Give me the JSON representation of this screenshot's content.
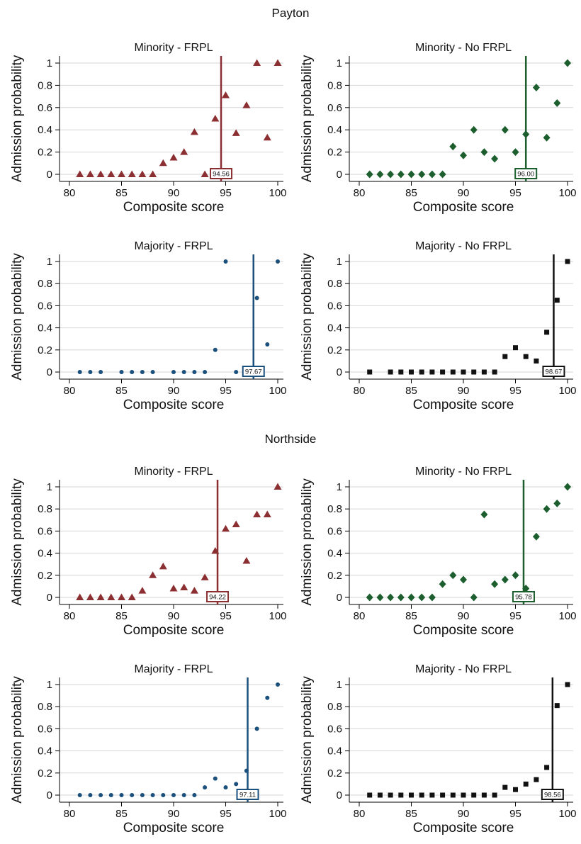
{
  "colors": {
    "red": "#8b2f32",
    "green": "#1d5e2e",
    "blue": "#1b4f7c",
    "black": "#111111"
  },
  "chart_data": [
    {
      "type": "scatter",
      "school": "Payton",
      "title": "Minority - FRPL",
      "xlabel": "Composite score",
      "ylabel": "Admission probability",
      "xlim": [
        80,
        100
      ],
      "ylim": [
        0,
        1
      ],
      "xticks": [
        80,
        85,
        90,
        95,
        100
      ],
      "yticks": [
        0,
        0.2,
        0.4,
        0.6,
        0.8,
        1
      ],
      "marker": "triangle",
      "color": "#8b2f32",
      "cutoff": 94.56,
      "cutoff_label": "94.56",
      "x": [
        81,
        82,
        83,
        84,
        85,
        86,
        87,
        88,
        89,
        90,
        91,
        92,
        93,
        94,
        95,
        96,
        97,
        98,
        99,
        100
      ],
      "y": [
        0,
        0,
        0,
        0,
        0,
        0,
        0,
        0,
        0.1,
        0.15,
        0.2,
        0.38,
        0,
        0.5,
        0.71,
        0.37,
        0.62,
        1,
        0.33,
        1
      ]
    },
    {
      "type": "scatter",
      "school": "Payton",
      "title": "Minority - No FRPL",
      "xlabel": "Composite score",
      "ylabel": "Admission probability",
      "xlim": [
        80,
        100
      ],
      "ylim": [
        0,
        1
      ],
      "xticks": [
        80,
        85,
        90,
        95,
        100
      ],
      "yticks": [
        0,
        0.2,
        0.4,
        0.6,
        0.8,
        1
      ],
      "marker": "diamond",
      "color": "#1d5e2e",
      "cutoff": 96.0,
      "cutoff_label": "96.00",
      "x": [
        81,
        82,
        83,
        84,
        85,
        86,
        87,
        88,
        89,
        90,
        91,
        92,
        93,
        94,
        95,
        96,
        97,
        98,
        99,
        100
      ],
      "y": [
        0,
        0,
        0,
        0,
        0,
        0,
        0,
        0,
        0.25,
        0.17,
        0.4,
        0.2,
        0.14,
        0.4,
        0.2,
        0.36,
        0.78,
        0.33,
        0.64,
        1
      ]
    },
    {
      "type": "scatter",
      "school": "Payton",
      "title": "Majority - FRPL",
      "xlabel": "Composite score",
      "ylabel": "Admission probability",
      "xlim": [
        80,
        100
      ],
      "ylim": [
        0,
        1
      ],
      "xticks": [
        80,
        85,
        90,
        95,
        100
      ],
      "yticks": [
        0,
        0.2,
        0.4,
        0.6,
        0.8,
        1
      ],
      "marker": "circle",
      "color": "#1b4f7c",
      "cutoff": 97.67,
      "cutoff_label": "97.67",
      "x": [
        81,
        82,
        83,
        85,
        86,
        87,
        88,
        90,
        91,
        92,
        93,
        94,
        95,
        96,
        97,
        98,
        99,
        100
      ],
      "y": [
        0,
        0,
        0,
        0,
        0,
        0,
        0,
        0,
        0,
        0,
        0,
        0.2,
        1,
        0,
        0,
        0.67,
        0.25,
        1
      ]
    },
    {
      "type": "scatter",
      "school": "Payton",
      "title": "Majority - No FRPL",
      "xlabel": "Composite score",
      "ylabel": "Admission probability",
      "xlim": [
        80,
        100
      ],
      "ylim": [
        0,
        1
      ],
      "xticks": [
        80,
        85,
        90,
        95,
        100
      ],
      "yticks": [
        0,
        0.2,
        0.4,
        0.6,
        0.8,
        1
      ],
      "marker": "square",
      "color": "#111111",
      "cutoff": 98.67,
      "cutoff_label": "98.67",
      "x": [
        81,
        83,
        84,
        85,
        86,
        87,
        88,
        89,
        90,
        91,
        92,
        93,
        94,
        95,
        96,
        97,
        98,
        99,
        100
      ],
      "y": [
        0,
        0,
        0,
        0,
        0,
        0,
        0,
        0,
        0,
        0,
        0,
        0,
        0.14,
        0.22,
        0.14,
        0.1,
        0.36,
        0.65,
        1
      ]
    },
    {
      "type": "scatter",
      "school": "Northside",
      "title": "Minority - FRPL",
      "xlabel": "Composite score",
      "ylabel": "Admission probability",
      "xlim": [
        80,
        100
      ],
      "ylim": [
        0,
        1
      ],
      "xticks": [
        80,
        85,
        90,
        95,
        100
      ],
      "yticks": [
        0,
        0.2,
        0.4,
        0.6,
        0.8,
        1
      ],
      "marker": "triangle",
      "color": "#8b2f32",
      "cutoff": 94.22,
      "cutoff_label": "94.22",
      "x": [
        81,
        82,
        83,
        84,
        85,
        86,
        87,
        88,
        89,
        90,
        91,
        92,
        93,
        94,
        95,
        96,
        97,
        98,
        99,
        100
      ],
      "y": [
        0,
        0,
        0,
        0,
        0,
        0,
        0.06,
        0.2,
        0.28,
        0.08,
        0.09,
        0.06,
        0.18,
        0.42,
        0.62,
        0.66,
        0.33,
        0.75,
        0.75,
        1
      ]
    },
    {
      "type": "scatter",
      "school": "Northside",
      "title": "Minority - No FRPL",
      "xlabel": "Composite score",
      "ylabel": "Admission probability",
      "xlim": [
        80,
        100
      ],
      "ylim": [
        0,
        1
      ],
      "xticks": [
        80,
        85,
        90,
        95,
        100
      ],
      "yticks": [
        0,
        0.2,
        0.4,
        0.6,
        0.8,
        1
      ],
      "marker": "diamond",
      "color": "#1d5e2e",
      "cutoff": 95.78,
      "cutoff_label": "95.78",
      "x": [
        81,
        82,
        83,
        84,
        85,
        86,
        87,
        88,
        89,
        90,
        91,
        92,
        93,
        94,
        95,
        96,
        97,
        98,
        99,
        100
      ],
      "y": [
        0,
        0,
        0,
        0,
        0,
        0,
        0,
        0.12,
        0.2,
        0.16,
        0,
        0.75,
        0.12,
        0.16,
        0.2,
        0.08,
        0.55,
        0.8,
        0.85,
        1
      ]
    },
    {
      "type": "scatter",
      "school": "Northside",
      "title": "Majority - FRPL",
      "xlabel": "Composite score",
      "ylabel": "Admission probability",
      "xlim": [
        80,
        100
      ],
      "ylim": [
        0,
        1
      ],
      "xticks": [
        80,
        85,
        90,
        95,
        100
      ],
      "yticks": [
        0,
        0.2,
        0.4,
        0.6,
        0.8,
        1
      ],
      "marker": "circle",
      "color": "#1b4f7c",
      "cutoff": 97.11,
      "cutoff_label": "97.11",
      "x": [
        81,
        82,
        83,
        84,
        85,
        86,
        87,
        88,
        89,
        90,
        91,
        92,
        93,
        94,
        95,
        96,
        97,
        98,
        99,
        100
      ],
      "y": [
        0,
        0,
        0,
        0,
        0,
        0,
        0,
        0,
        0,
        0,
        0,
        0,
        0.07,
        0.15,
        0.07,
        0.1,
        0.22,
        0.6,
        0.88,
        1
      ]
    },
    {
      "type": "scatter",
      "school": "Northside",
      "title": "Majority - No FRPL",
      "xlabel": "Composite score",
      "ylabel": "Admission probability",
      "xlim": [
        80,
        100
      ],
      "ylim": [
        0,
        1
      ],
      "xticks": [
        80,
        85,
        90,
        95,
        100
      ],
      "yticks": [
        0,
        0.2,
        0.4,
        0.6,
        0.8,
        1
      ],
      "marker": "square",
      "color": "#111111",
      "cutoff": 98.56,
      "cutoff_label": "98.56",
      "x": [
        81,
        82,
        83,
        84,
        85,
        86,
        87,
        88,
        89,
        90,
        91,
        92,
        93,
        94,
        95,
        96,
        97,
        98,
        99,
        100
      ],
      "y": [
        0,
        0,
        0,
        0,
        0,
        0,
        0,
        0,
        0,
        0,
        0,
        0,
        0,
        0.07,
        0.05,
        0.1,
        0.14,
        0.25,
        0.81,
        1
      ]
    }
  ],
  "sections": [
    "Payton",
    "Northside"
  ]
}
